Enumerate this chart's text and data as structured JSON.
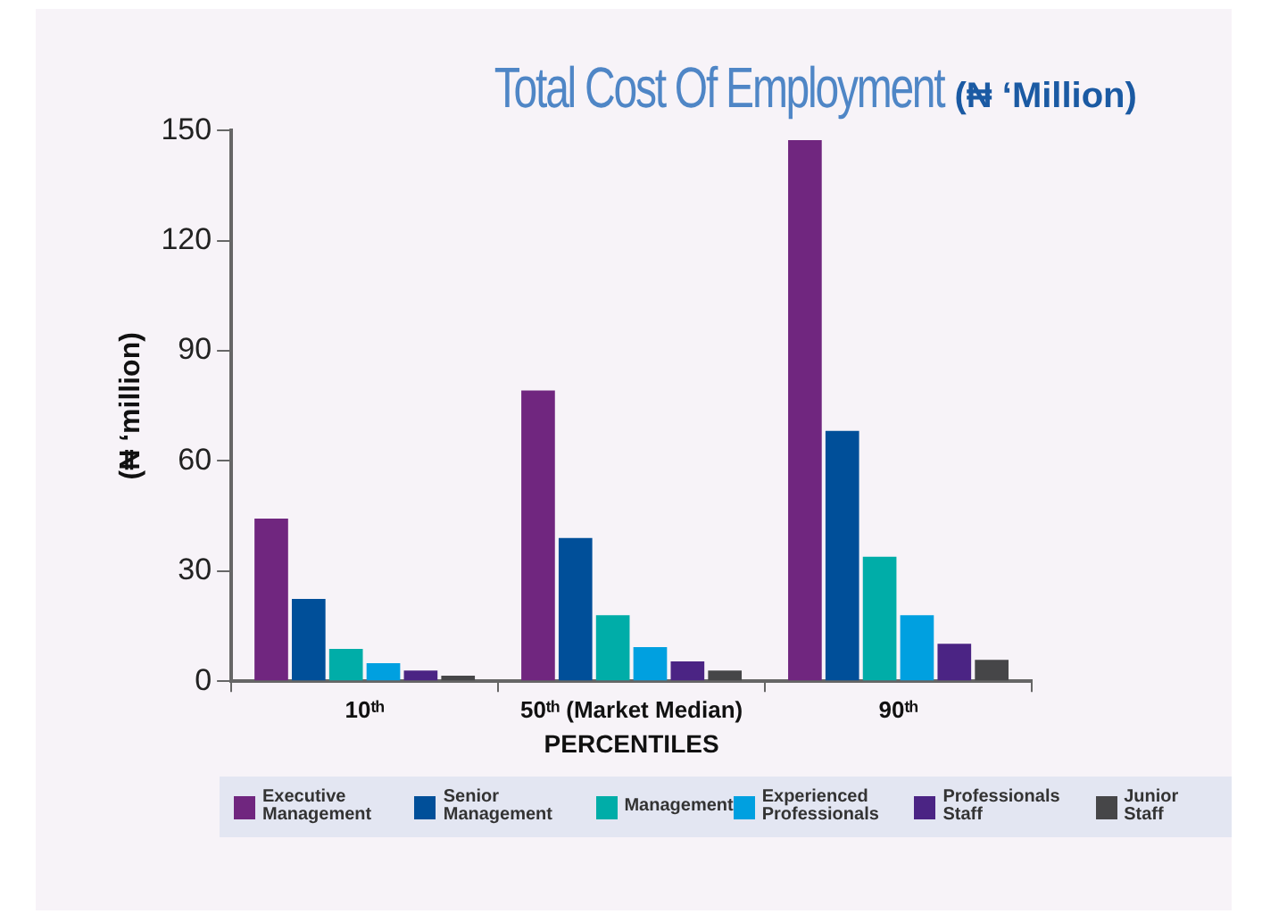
{
  "chart_data": {
    "type": "bar",
    "title": "Total Cost Of Employment",
    "subtitle": "(₦ ‘Million)",
    "xlabel": "PERCENTILES",
    "ylabel": "(₦ ‘million)",
    "categories": [
      "10ᵗʰ",
      "50ᵗʰ (Market Median)",
      "90ᵗʰ"
    ],
    "series": [
      {
        "name": "Executive Management",
        "color": "#70267f",
        "values": [
          44.3,
          79.2,
          147.4
        ]
      },
      {
        "name": "Senior Management",
        "color": "#004f99",
        "values": [
          22.4,
          39,
          68.2
        ]
      },
      {
        "name": "Management",
        "color": "#00ada8",
        "values": [
          8.8,
          18,
          33.9
        ]
      },
      {
        "name": "Experienced Professionals",
        "color": "#00a0e0",
        "values": [
          4.9,
          9.3,
          18
        ]
      },
      {
        "name": "Professionals Staff",
        "color": "#4b2484",
        "values": [
          2.9,
          5.4,
          10.2
        ]
      },
      {
        "name": "Junior Staff",
        "color": "#464648",
        "values": [
          1.5,
          2.9,
          5.8
        ]
      }
    ],
    "ylim": [
      0,
      150
    ],
    "yticks": [
      0,
      30,
      60,
      90,
      120,
      150
    ],
    "grid": false,
    "legend": "bottom"
  }
}
